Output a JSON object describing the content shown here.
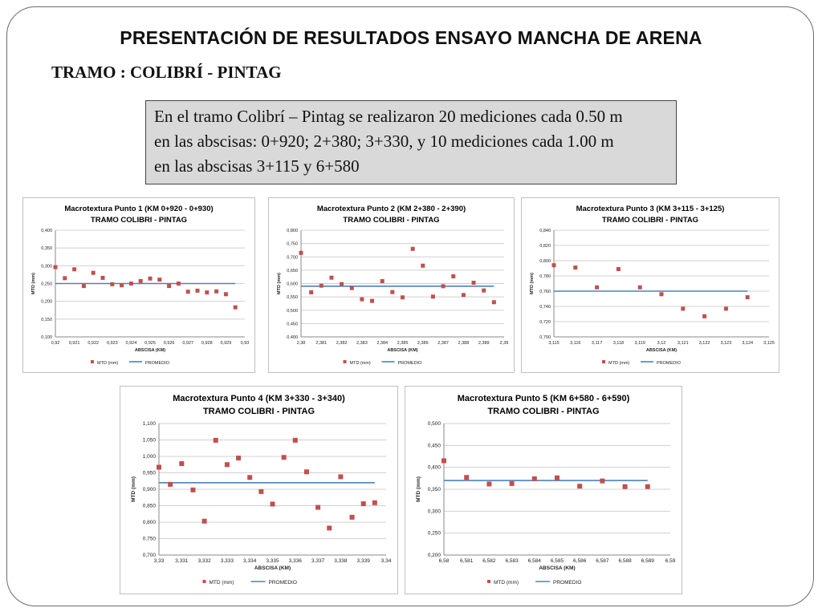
{
  "slide": {
    "title": "PRESENTACIÓN DE RESULTADOS ENSAYO MANCHA DE ARENA",
    "subtitle": "TRAMO : COLIBRÍ - PINTAG",
    "note_lines": [
      "En el tramo Colibrí – Pintag se realizaron 20 mediciones cada 0.50 m",
      "en las abscisas: 0+920; 2+380; 3+330, y 10 mediciones cada 1.00 m",
      "en las abscisas 3+115 y 6+580"
    ]
  },
  "colors": {
    "marker": "#c0504d",
    "average_line": "#4f81bd",
    "grid": "#d0d0d0"
  },
  "chart_data": [
    {
      "type": "scatter",
      "title": "Macrotextura Punto 1 (KM 0+920 - 0+930)",
      "subtitle": "TRAMO COLIBRI - PINTAG",
      "xlabel": "ABSCISA (KM)",
      "ylabel": "MTD (mm)",
      "xlim": [
        0.92,
        0.93
      ],
      "ylim": [
        0.1,
        0.4
      ],
      "xticks": [
        "0,92",
        "0,921",
        "0,922",
        "0,923",
        "0,924",
        "0,925",
        "0,926",
        "0,927",
        "0,928",
        "0,929",
        "0,93"
      ],
      "yticks": [
        "0,100",
        "0,150",
        "0,200",
        "0,250",
        "0,300",
        "0,350",
        "0,400"
      ],
      "x": [
        0.92,
        0.9205,
        0.921,
        0.9215,
        0.922,
        0.9225,
        0.923,
        0.9235,
        0.924,
        0.9245,
        0.925,
        0.9255,
        0.926,
        0.9265,
        0.927,
        0.9275,
        0.928,
        0.9285,
        0.929,
        0.9295
      ],
      "series": [
        {
          "name": "MTD (mm)",
          "values": [
            0.296,
            0.265,
            0.29,
            0.243,
            0.28,
            0.266,
            0.248,
            0.245,
            0.25,
            0.257,
            0.264,
            0.261,
            0.243,
            0.25,
            0.227,
            0.23,
            0.225,
            0.228,
            0.22,
            0.183
          ]
        },
        {
          "name": "PROMEDIO",
          "values": [
            0.25,
            0.25
          ]
        }
      ],
      "legend": [
        "MTD (mm)",
        "PROMEDIO"
      ],
      "legend_position": "bottom",
      "grid": true
    },
    {
      "type": "scatter",
      "title": "Macrotextura Punto 2 (KM 2+380 - 2+390)",
      "subtitle": "TRAMO COLIBRI - PINTAG",
      "xlabel": "ABSCISA (KM)",
      "ylabel": "MTD (mm)",
      "xlim": [
        2.38,
        2.39
      ],
      "ylim": [
        0.4,
        0.8
      ],
      "xticks": [
        "2,38",
        "2,381",
        "2,382",
        "2,383",
        "2,384",
        "2,385",
        "2,386",
        "2,387",
        "2,388",
        "2,389",
        "2,39"
      ],
      "yticks": [
        "0,400",
        "0,450",
        "0,500",
        "0,550",
        "0,600",
        "0,650",
        "0,700",
        "0,750",
        "0,800"
      ],
      "x": [
        2.38,
        2.3805,
        2.381,
        2.3815,
        2.382,
        2.3825,
        2.383,
        2.3835,
        2.384,
        2.3845,
        2.385,
        2.3855,
        2.386,
        2.3865,
        2.387,
        2.3875,
        2.388,
        2.3885,
        2.389,
        2.3895
      ],
      "series": [
        {
          "name": "MTD (mm)",
          "values": [
            0.715,
            0.567,
            0.592,
            0.622,
            0.598,
            0.583,
            0.541,
            0.535,
            0.609,
            0.568,
            0.548,
            0.73,
            0.667,
            0.551,
            0.59,
            0.627,
            0.557,
            0.603,
            0.574,
            0.53
          ]
        },
        {
          "name": "PROMEDIO",
          "values": [
            0.59,
            0.59
          ]
        }
      ],
      "legend": [
        "MTD (mm)",
        "PROMEDIO"
      ],
      "legend_position": "bottom",
      "grid": true
    },
    {
      "type": "scatter",
      "title": "Macrotextura Punto 3 (KM 3+115 - 3+125)",
      "subtitle": "TRAMO COLIBRI - PINTAG",
      "xlabel": "ABSCISA (KM)",
      "ylabel": "MTD (mm)",
      "xlim": [
        3.115,
        3.125
      ],
      "ylim": [
        0.7,
        0.84
      ],
      "xticks": [
        "3,115",
        "3,116",
        "3,117",
        "3,118",
        "3,119",
        "3,12",
        "3,121",
        "3,122",
        "3,123",
        "3,124",
        "3,125"
      ],
      "yticks": [
        "0,700",
        "0,720",
        "0,740",
        "0,760",
        "0,780",
        "0,800",
        "0,820",
        "0,840"
      ],
      "x": [
        3.115,
        3.116,
        3.117,
        3.118,
        3.119,
        3.12,
        3.121,
        3.122,
        3.123,
        3.124
      ],
      "series": [
        {
          "name": "MTD (mm)",
          "values": [
            0.794,
            0.791,
            0.765,
            0.789,
            0.765,
            0.756,
            0.737,
            0.727,
            0.737,
            0.752
          ]
        },
        {
          "name": "PROMEDIO",
          "values": [
            0.76,
            0.76
          ]
        }
      ],
      "legend": [
        "MTD (mm)",
        "PROMEDIO"
      ],
      "legend_position": "bottom",
      "grid": true
    },
    {
      "type": "scatter",
      "title": "Macrotextura Punto 4 (KM 3+330 - 3+340)",
      "subtitle": "TRAMO COLIBRI - PINTAG",
      "xlabel": "ABSCISA (KM)",
      "ylabel": "MTD (mm)",
      "xlim": [
        3.33,
        3.34
      ],
      "ylim": [
        0.7,
        1.1
      ],
      "xticks": [
        "3,33",
        "3,331",
        "3,332",
        "3,333",
        "3,334",
        "3,335",
        "3,336",
        "3,337",
        "3,338",
        "3,339",
        "3,34"
      ],
      "yticks": [
        "0,700",
        "0,750",
        "0,800",
        "0,850",
        "0,900",
        "0,950",
        "1,000",
        "1,050",
        "1,100"
      ],
      "x": [
        3.33,
        3.3305,
        3.331,
        3.3315,
        3.332,
        3.3325,
        3.333,
        3.3335,
        3.334,
        3.3345,
        3.335,
        3.3355,
        3.336,
        3.3365,
        3.337,
        3.3375,
        3.338,
        3.3385,
        3.339,
        3.3395
      ],
      "series": [
        {
          "name": "MTD (mm)",
          "values": [
            0.967,
            0.915,
            0.978,
            0.898,
            0.803,
            1.049,
            0.975,
            0.995,
            0.936,
            0.893,
            0.855,
            0.997,
            1.049,
            0.953,
            0.845,
            0.782,
            0.938,
            0.815,
            0.856,
            0.859
          ]
        },
        {
          "name": "PROMEDIO",
          "values": [
            0.92,
            0.92
          ]
        }
      ],
      "legend": [
        "MTD (mm)",
        "PROMEDIO"
      ],
      "legend_position": "bottom",
      "grid": true
    },
    {
      "type": "scatter",
      "title": "Macrotextura Punto 5 (KM 6+580 - 6+590)",
      "subtitle": "TRAMO COLIBRI - PINTAG",
      "xlabel": "ABSCISA (KM)",
      "ylabel": "MTD (mm)",
      "xlim": [
        6.58,
        6.59
      ],
      "ylim": [
        0.2,
        0.5
      ],
      "xticks": [
        "6,58",
        "6,581",
        "6,582",
        "6,583",
        "6,584",
        "6,585",
        "6,586",
        "6,587",
        "6,588",
        "6,589",
        "6,59"
      ],
      "yticks": [
        "0,200",
        "0,250",
        "0,300",
        "0,350",
        "0,400",
        "0,450",
        "0,500"
      ],
      "x": [
        6.58,
        6.581,
        6.582,
        6.583,
        6.584,
        6.585,
        6.586,
        6.587,
        6.588,
        6.589
      ],
      "series": [
        {
          "name": "MTD (mm)",
          "values": [
            0.415,
            0.377,
            0.362,
            0.363,
            0.374,
            0.376,
            0.357,
            0.369,
            0.356,
            0.356
          ]
        },
        {
          "name": "PROMEDIO",
          "values": [
            0.37,
            0.37
          ]
        }
      ],
      "legend": [
        "MTD (mm)",
        "PROMEDIO"
      ],
      "legend_position": "bottom",
      "grid": true
    }
  ]
}
